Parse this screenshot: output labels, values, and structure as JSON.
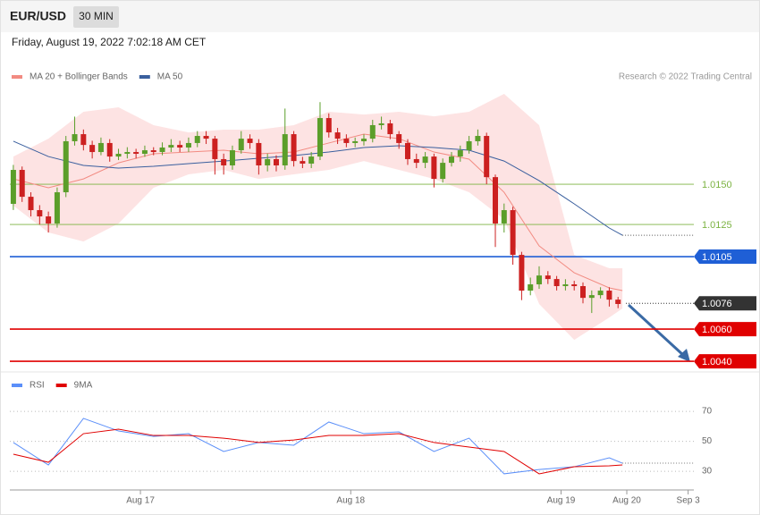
{
  "header": {
    "symbol": "EUR/USD",
    "interval": "30 MIN",
    "date": "Friday, August 19, 2022 7:02:18 AM CET"
  },
  "chart_data": [
    {
      "type": "candlestick",
      "credit": "Research © 2022 Trading Central",
      "xlim": [
        -0.8,
        155.3
      ],
      "ylim": [
        1.00356,
        1.02089
      ],
      "up_color": "#5b9e2a",
      "down_color": "#cc2020",
      "x": [
        0,
        2,
        4,
        6,
        8,
        10,
        12,
        14,
        16,
        18,
        20,
        22,
        24,
        26,
        28,
        30,
        32,
        34,
        36,
        38,
        40,
        42,
        44,
        46,
        48,
        50,
        52,
        54,
        56,
        58,
        60,
        62,
        64,
        66,
        68,
        70,
        72,
        74,
        76,
        78,
        80,
        82,
        84,
        86,
        88,
        90,
        92,
        94,
        96,
        98,
        100,
        102,
        104,
        106,
        108,
        110,
        112,
        114,
        116,
        118,
        120,
        122,
        124,
        126,
        128,
        130,
        132,
        134,
        136,
        138
      ],
      "open": [
        1.01378,
        1.01589,
        1.01422,
        1.01339,
        1.013,
        1.01256,
        1.0145,
        1.01767,
        1.01811,
        1.01744,
        1.017,
        1.01756,
        1.01672,
        1.01689,
        1.017,
        1.01689,
        1.01711,
        1.017,
        1.01728,
        1.01744,
        1.01728,
        1.01756,
        1.018,
        1.01783,
        1.01656,
        1.01617,
        1.01711,
        1.01783,
        1.01756,
        1.01617,
        1.01656,
        1.01617,
        1.01811,
        1.01644,
        1.01628,
        1.01672,
        1.01911,
        1.01822,
        1.01783,
        1.01756,
        1.01767,
        1.01783,
        1.01867,
        1.01878,
        1.01811,
        1.01756,
        1.01656,
        1.01633,
        1.01672,
        1.01533,
        1.01633,
        1.01672,
        1.01711,
        1.01767,
        1.018,
        1.01544,
        1.01256,
        1.01339,
        1.01061,
        1.00839,
        1.00878,
        1.00933,
        1.00911,
        1.00867,
        1.00878,
        1.00867,
        1.00794,
        1.00811,
        1.00839,
        1.00783
      ],
      "high": [
        1.0162,
        1.0161,
        1.0145,
        1.0137,
        1.0133,
        1.0148,
        1.018,
        1.0192,
        1.0184,
        1.0177,
        1.0179,
        1.0178,
        1.0172,
        1.0173,
        1.0172,
        1.0174,
        1.0173,
        1.0176,
        1.0178,
        1.0177,
        1.0179,
        1.0183,
        1.0183,
        1.018,
        1.0169,
        1.0174,
        1.0183,
        1.0181,
        1.0178,
        1.0169,
        1.0168,
        1.0197,
        1.0183,
        1.0167,
        1.017,
        1.0201,
        1.0194,
        1.0185,
        1.0181,
        1.0179,
        1.0181,
        1.019,
        1.0192,
        1.019,
        1.0183,
        1.0178,
        1.0169,
        1.017,
        1.0169,
        1.0166,
        1.017,
        1.0174,
        1.018,
        1.0184,
        1.0182,
        1.0156,
        1.0138,
        1.0136,
        1.0108,
        1.0092,
        1.0099,
        1.0096,
        1.0093,
        1.0091,
        1.009,
        1.0089,
        1.0084,
        1.0086,
        1.0086,
        1.008
      ],
      "low": [
        1.0134,
        1.0139,
        1.013,
        1.0125,
        1.012,
        1.0123,
        1.0142,
        1.0174,
        1.0171,
        1.0166,
        1.0168,
        1.0164,
        1.0165,
        1.0166,
        1.0166,
        1.0167,
        1.0168,
        1.0168,
        1.017,
        1.017,
        1.017,
        1.0173,
        1.0175,
        1.0156,
        1.0156,
        1.0159,
        1.0169,
        1.0172,
        1.0156,
        1.0158,
        1.0158,
        1.0159,
        1.0161,
        1.016,
        1.016,
        1.0165,
        1.0179,
        1.0175,
        1.0173,
        1.0173,
        1.0174,
        1.0176,
        1.0184,
        1.0178,
        1.0172,
        1.0162,
        1.016,
        1.016,
        1.0148,
        1.0151,
        1.0161,
        1.0164,
        1.0169,
        1.0174,
        1.015,
        1.0111,
        1.012,
        1.01,
        1.0078,
        1.0081,
        1.0085,
        1.0088,
        1.0084,
        1.0084,
        1.0084,
        1.0076,
        1.007,
        1.0079,
        1.0074,
        1.0073
      ],
      "close": [
        1.01589,
        1.01422,
        1.01339,
        1.013,
        1.01256,
        1.0145,
        1.01767,
        1.01811,
        1.01744,
        1.017,
        1.01756,
        1.01672,
        1.01689,
        1.017,
        1.01689,
        1.01711,
        1.017,
        1.01728,
        1.01744,
        1.01728,
        1.01756,
        1.018,
        1.01783,
        1.01656,
        1.01617,
        1.01711,
        1.01783,
        1.01756,
        1.01617,
        1.01656,
        1.01617,
        1.01811,
        1.01644,
        1.01628,
        1.01672,
        1.01911,
        1.01822,
        1.01783,
        1.01756,
        1.01767,
        1.01783,
        1.01867,
        1.01878,
        1.01811,
        1.01756,
        1.01656,
        1.01633,
        1.01672,
        1.01533,
        1.01633,
        1.01672,
        1.01711,
        1.01767,
        1.018,
        1.01544,
        1.01256,
        1.01339,
        1.01061,
        1.00839,
        1.00878,
        1.00933,
        1.00911,
        1.00867,
        1.00878,
        1.00867,
        1.00794,
        1.00811,
        1.00839,
        1.00783,
        1.00756
      ],
      "series": [
        {
          "name": "MA 20 + Bollinger Bands",
          "color": "#f28b82",
          "band_color": "#fde3e3",
          "x": [
            0,
            8,
            16,
            24,
            32,
            40,
            48,
            56,
            64,
            72,
            80,
            88,
            96,
            104,
            112,
            120,
            128,
            136,
            139
          ],
          "values": [
            1.01533,
            1.01478,
            1.01533,
            1.01633,
            1.01689,
            1.017,
            1.01711,
            1.01689,
            1.017,
            1.01756,
            1.01811,
            1.01783,
            1.017,
            1.01656,
            1.0145,
            1.01117,
            1.0095,
            1.00856,
            1.00839
          ],
          "upper": [
            1.01672,
            1.01783,
            1.0195,
            1.01978,
            1.01867,
            1.01822,
            1.01839,
            1.01839,
            1.01867,
            1.0195,
            1.01933,
            1.0195,
            1.01922,
            1.0195,
            1.02061,
            1.01867,
            1.01061,
            1.00978,
            1.00978
          ],
          "lower": [
            1.01367,
            1.012,
            1.01144,
            1.01256,
            1.01478,
            1.01561,
            1.01589,
            1.01533,
            1.01561,
            1.01589,
            1.01644,
            1.01589,
            1.01533,
            1.0145,
            1.01283,
            1.00756,
            1.00533,
            1.00672,
            1.00728
          ]
        },
        {
          "name": "MA 50",
          "color": "#3a5f9e",
          "x": [
            0,
            8,
            16,
            24,
            32,
            40,
            48,
            56,
            64,
            72,
            80,
            88,
            96,
            104,
            112,
            120,
            128,
            136,
            139
          ],
          "values": [
            1.01767,
            1.01672,
            1.01617,
            1.016,
            1.01611,
            1.01628,
            1.01644,
            1.01661,
            1.01678,
            1.017,
            1.01728,
            1.01739,
            1.01728,
            1.01711,
            1.01644,
            1.01522,
            1.01378,
            1.01228,
            1.01183
          ]
        }
      ],
      "levels": [
        {
          "value": 1.015,
          "label": "1.0150",
          "color": "#7cb342",
          "box": false,
          "line": "solid"
        },
        {
          "value": 1.0125,
          "label": "1.0125",
          "color": "#7cb342",
          "box": false,
          "line": "solid"
        },
        {
          "value": 1.0105,
          "label": "1.0105",
          "color": "#1f5fd6",
          "box": true,
          "line": "solid"
        },
        {
          "value": 1.0076,
          "label": "1.0076",
          "color": "#333333",
          "box": true,
          "line": "dotted"
        },
        {
          "value": 1.006,
          "label": "1.0060",
          "color": "#e00000",
          "box": true,
          "line": "solid"
        },
        {
          "value": 1.004,
          "label": "1.0040",
          "color": "#e00000",
          "box": true,
          "line": "solid"
        }
      ]
    },
    {
      "type": "line",
      "xlim": [
        -0.8,
        155.3
      ],
      "ylim": [
        19.3,
        82
      ],
      "yticks": [
        70,
        50,
        30
      ],
      "grid": true,
      "xticks": [
        {
          "value": 29,
          "label": "Aug 17"
        },
        {
          "value": 77,
          "label": "Aug 18"
        },
        {
          "value": 125,
          "label": "Aug 19"
        },
        {
          "value": 140,
          "label": "Aug 20"
        },
        {
          "value": 154,
          "label": "Sep 3"
        }
      ],
      "series": [
        {
          "name": "RSI",
          "color": "#5b8ff9",
          "x": [
            0,
            8,
            16,
            24,
            32,
            40,
            48,
            56,
            64,
            72,
            80,
            88,
            96,
            104,
            112,
            120,
            128,
            136,
            139
          ],
          "values": [
            49.2,
            34.2,
            65.3,
            56.9,
            53.3,
            55.1,
            43.2,
            49.2,
            47.4,
            62.9,
            55.1,
            56.3,
            43.2,
            52.1,
            28.3,
            31.2,
            33.0,
            39.0,
            35.4
          ]
        },
        {
          "name": "9MA",
          "color": "#e00000",
          "x": [
            0,
            8,
            16,
            24,
            32,
            40,
            48,
            56,
            64,
            72,
            80,
            88,
            96,
            104,
            112,
            120,
            128,
            136,
            139
          ],
          "values": [
            41.4,
            36.0,
            55.1,
            58.1,
            53.9,
            53.9,
            52.1,
            49.2,
            50.9,
            53.9,
            53.9,
            55.1,
            49.2,
            46.2,
            43.2,
            28.3,
            33.0,
            33.6,
            34.2
          ]
        }
      ]
    }
  ]
}
